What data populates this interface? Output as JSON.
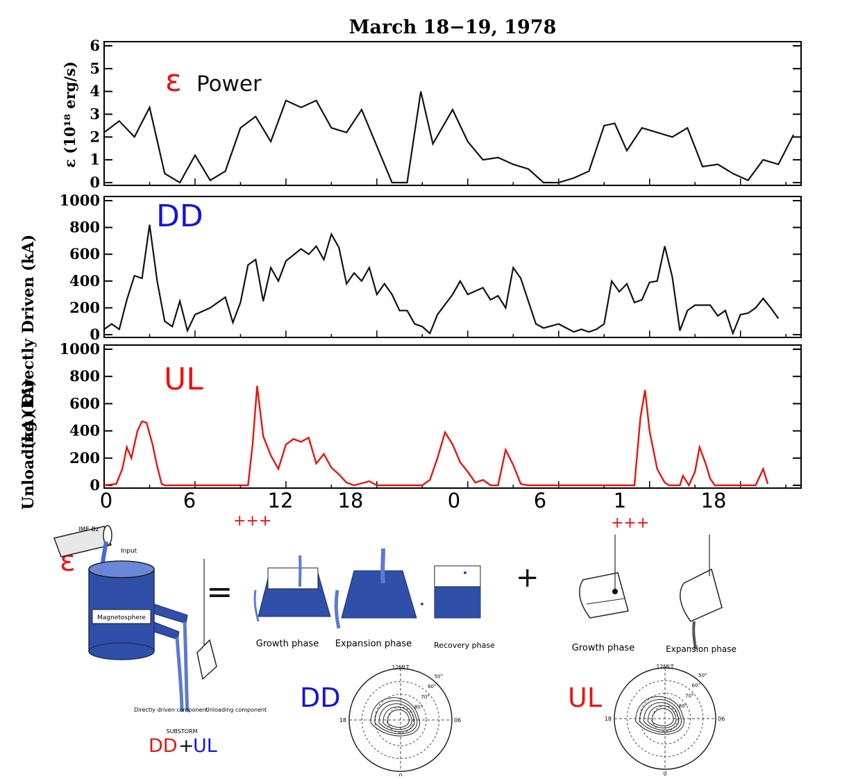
{
  "figure": {
    "title": "March 18−19, 1978"
  },
  "colors": {
    "axis": "#000000",
    "series_black": "#111111",
    "series_red": "#e8140c",
    "label_red": "#ee1111",
    "label_blue": "#1414dc",
    "water_blue": "#2f4fa8",
    "water_dark": "#1e3270"
  },
  "chart_data": [
    {
      "type": "line",
      "panel": "epsilon",
      "ylabel": "ε (10¹⁸ erg/s)",
      "annotation_symbol": "ε",
      "annotation_text": "Power",
      "ylim": [
        0,
        6
      ],
      "yticks": [
        "0",
        "1",
        "2",
        "3",
        "4",
        "5",
        "6"
      ],
      "x_range_hours": [
        0,
        43
      ],
      "series": [
        {
          "values": [
            [
              0,
              2.2
            ],
            [
              1,
              2.7
            ],
            [
              2,
              2
            ],
            [
              3,
              3.3
            ],
            [
              4,
              0.4
            ],
            [
              5,
              0
            ],
            [
              6,
              1.2
            ],
            [
              7,
              0.1
            ],
            [
              8,
              0.5
            ],
            [
              9,
              2.4
            ],
            [
              10,
              2.9
            ],
            [
              11,
              1.8
            ],
            [
              12,
              3.6
            ],
            [
              13,
              3.3
            ],
            [
              14,
              3.6
            ],
            [
              15,
              2.4
            ],
            [
              16,
              2.2
            ],
            [
              17,
              3.2
            ],
            [
              19,
              0
            ],
            [
              20,
              0
            ],
            [
              20.9,
              4
            ],
            [
              21.7,
              1.7
            ],
            [
              23,
              3.2
            ],
            [
              24,
              1.8
            ],
            [
              25,
              1
            ],
            [
              26,
              1.1
            ],
            [
              27,
              0.8
            ],
            [
              28,
              0.6
            ],
            [
              29,
              0
            ],
            [
              30,
              0
            ],
            [
              31,
              0.2
            ],
            [
              32,
              0.5
            ],
            [
              33,
              2.5
            ],
            [
              33.7,
              2.6
            ],
            [
              34.5,
              1.4
            ],
            [
              35.5,
              2.4
            ],
            [
              36.5,
              2.2
            ],
            [
              37.5,
              2
            ],
            [
              38.5,
              2.4
            ],
            [
              39.5,
              0.7
            ],
            [
              40.5,
              0.8
            ],
            [
              41.5,
              0.4
            ],
            [
              42.5,
              0.1
            ],
            [
              43.5,
              1
            ],
            [
              44.5,
              0.8
            ],
            [
              45.5,
              2.1
            ]
          ]
        }
      ]
    },
    {
      "type": "line",
      "panel": "directly-driven",
      "ylabel": "(kA) Directly Driven (kA)",
      "annotation_text": "DD",
      "ylim": [
        0,
        1000
      ],
      "yticks": [
        "0",
        "200",
        "400",
        "600",
        "800",
        "1000"
      ],
      "series": [
        {
          "values": [
            [
              0,
              40
            ],
            [
              0.5,
              80
            ],
            [
              1,
              40
            ],
            [
              1.5,
              260
            ],
            [
              2,
              440
            ],
            [
              2.5,
              420
            ],
            [
              3,
              820
            ],
            [
              3.5,
              400
            ],
            [
              4,
              100
            ],
            [
              4.5,
              60
            ],
            [
              5,
              250
            ],
            [
              5.5,
              30
            ],
            [
              6,
              150
            ],
            [
              7,
              200
            ],
            [
              8,
              280
            ],
            [
              8.5,
              90
            ],
            [
              9,
              240
            ],
            [
              9.5,
              520
            ],
            [
              10,
              560
            ],
            [
              10.5,
              250
            ],
            [
              11,
              500
            ],
            [
              11.5,
              400
            ],
            [
              12,
              550
            ],
            [
              13,
              640
            ],
            [
              13.5,
              600
            ],
            [
              14,
              660
            ],
            [
              14.5,
              560
            ],
            [
              15,
              750
            ],
            [
              15.5,
              650
            ],
            [
              16,
              380
            ],
            [
              16.5,
              460
            ],
            [
              17,
              400
            ],
            [
              17.5,
              500
            ],
            [
              18,
              300
            ],
            [
              18.5,
              380
            ],
            [
              19,
              300
            ],
            [
              19.5,
              180
            ],
            [
              20,
              180
            ],
            [
              20.5,
              80
            ],
            [
              21,
              60
            ],
            [
              21.5,
              10
            ],
            [
              22,
              150
            ],
            [
              23,
              300
            ],
            [
              23.5,
              400
            ],
            [
              24,
              300
            ],
            [
              25,
              350
            ],
            [
              25.5,
              260
            ],
            [
              26,
              290
            ],
            [
              26.5,
              200
            ],
            [
              27,
              500
            ],
            [
              27.5,
              420
            ],
            [
              28,
              250
            ],
            [
              28.5,
              80
            ],
            [
              29,
              50
            ],
            [
              30,
              80
            ],
            [
              31,
              20
            ],
            [
              31.5,
              40
            ],
            [
              32,
              20
            ],
            [
              32.5,
              40
            ],
            [
              33,
              80
            ],
            [
              33.5,
              400
            ],
            [
              34,
              320
            ],
            [
              34.5,
              380
            ],
            [
              35,
              240
            ],
            [
              35.5,
              260
            ],
            [
              36,
              390
            ],
            [
              36.5,
              400
            ],
            [
              37,
              660
            ],
            [
              37.5,
              430
            ],
            [
              38,
              30
            ],
            [
              38.5,
              180
            ],
            [
              39,
              220
            ],
            [
              40,
              220
            ],
            [
              40.5,
              140
            ],
            [
              41,
              180
            ],
            [
              41.5,
              10
            ],
            [
              42,
              150
            ],
            [
              42.5,
              160
            ],
            [
              43,
              200
            ],
            [
              43.5,
              270
            ],
            [
              44,
              200
            ],
            [
              44.5,
              120
            ]
          ]
        }
      ]
    },
    {
      "type": "line",
      "panel": "unloading",
      "ylabel": "Unloading (kA)",
      "annotation_text": "UL",
      "ylim": [
        0,
        1000
      ],
      "yticks": [
        "0",
        "200",
        "400",
        "600",
        "800",
        "1000"
      ],
      "xticks": [
        "0",
        "6",
        "12",
        "18",
        "0",
        "6",
        "1",
        "18"
      ],
      "series": [
        {
          "values": [
            [
              0,
              0
            ],
            [
              0.8,
              10
            ],
            [
              1.2,
              120
            ],
            [
              1.5,
              280
            ],
            [
              1.8,
              200
            ],
            [
              2.2,
              400
            ],
            [
              2.5,
              470
            ],
            [
              2.8,
              460
            ],
            [
              3.2,
              300
            ],
            [
              3.5,
              140
            ],
            [
              3.8,
              10
            ],
            [
              4,
              0
            ],
            [
              9.5,
              0
            ],
            [
              9.8,
              300
            ],
            [
              10.1,
              730
            ],
            [
              10.5,
              360
            ],
            [
              11,
              220
            ],
            [
              11.5,
              120
            ],
            [
              12,
              300
            ],
            [
              12.5,
              340
            ],
            [
              13,
              320
            ],
            [
              13.5,
              350
            ],
            [
              14,
              160
            ],
            [
              14.5,
              230
            ],
            [
              15,
              130
            ],
            [
              15.5,
              80
            ],
            [
              16,
              20
            ],
            [
              16.5,
              0
            ],
            [
              17.5,
              30
            ],
            [
              18,
              0
            ],
            [
              21,
              0
            ],
            [
              21.5,
              40
            ],
            [
              22,
              200
            ],
            [
              22.5,
              390
            ],
            [
              23,
              300
            ],
            [
              23.5,
              170
            ],
            [
              24,
              100
            ],
            [
              24.5,
              20
            ],
            [
              25,
              40
            ],
            [
              25.5,
              0
            ],
            [
              26,
              0
            ],
            [
              26.5,
              260
            ],
            [
              27,
              150
            ],
            [
              27.5,
              10
            ],
            [
              28,
              0
            ],
            [
              35,
              0
            ],
            [
              35.4,
              500
            ],
            [
              35.7,
              700
            ],
            [
              36,
              400
            ],
            [
              36.5,
              120
            ],
            [
              37,
              20
            ],
            [
              37.3,
              0
            ],
            [
              38,
              0
            ],
            [
              38.2,
              70
            ],
            [
              38.6,
              0
            ],
            [
              39,
              100
            ],
            [
              39.3,
              280
            ],
            [
              39.7,
              160
            ],
            [
              40,
              50
            ],
            [
              40.3,
              0
            ],
            [
              43,
              0
            ],
            [
              43.5,
              120
            ],
            [
              43.8,
              10
            ]
          ]
        }
      ]
    }
  ],
  "markers": {
    "plus_left": "+++",
    "plus_right": "+++"
  },
  "schematic": {
    "epsilon_label": "ε",
    "imf_label": "IMF Bz",
    "input_label": "Input",
    "magnetosphere_label": "Magnetosphere",
    "directly_driven_label": "Directly driven component",
    "unloading_label": "Unloading component",
    "substorm_label": "SUBSTORM",
    "bottom_dd": "DD",
    "bottom_plus": "+",
    "bottom_ul": "UL",
    "equals": "=",
    "plus": "+",
    "dd_phases": [
      "Growth phase",
      "Expansion phase",
      "Recovery phase"
    ],
    "ul_phases": [
      "Growth phase",
      "Expansion phase"
    ]
  },
  "polar_maps": {
    "dd_label": "DD",
    "ul_label": "UL",
    "top_label": "12MLT",
    "left_label": "18",
    "right_label": "06",
    "bottom_label": "0",
    "lat_labels": [
      "50°",
      "60°",
      "70°",
      "80°"
    ]
  }
}
